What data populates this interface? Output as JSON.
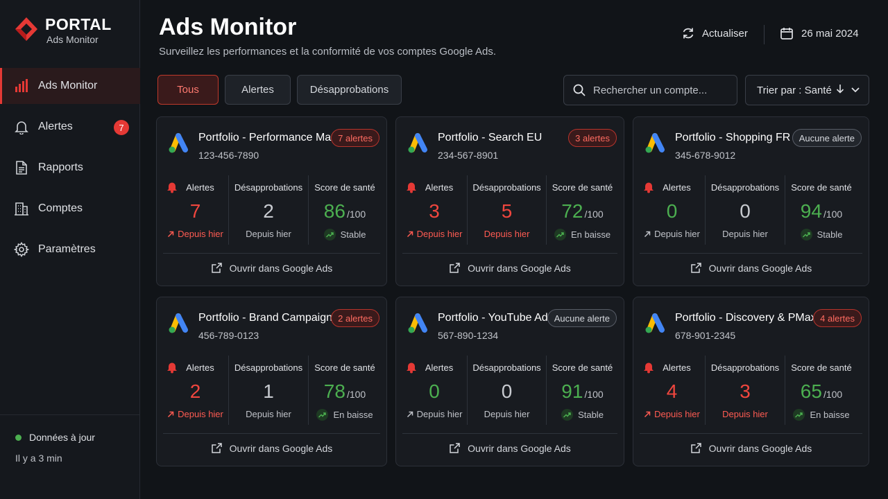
{
  "brand": {
    "name": "PORTAL",
    "sub": "Ads Monitor",
    "accent": "#e53935"
  },
  "sidebar": {
    "items": [
      {
        "label": "Ads Monitor",
        "icon": "bar-chart-icon",
        "active": true
      },
      {
        "label": "Alertes",
        "icon": "bell-icon",
        "badge": "7"
      },
      {
        "label": "Rapports",
        "icon": "document-icon"
      },
      {
        "label": "Comptes",
        "icon": "building-icon"
      },
      {
        "label": "Paramètres",
        "icon": "gear-icon"
      }
    ],
    "status": "Données à jour",
    "status_time": "Il y a 3 min"
  },
  "header": {
    "title": "Ads Monitor",
    "subtitle": "Surveillez les performances et la conformité de vos comptes Google Ads.",
    "refresh": "Actualiser",
    "date": "26 mai 2024"
  },
  "filters": [
    "Tous",
    "Alertes",
    "Désapprobations"
  ],
  "search": {
    "placeholder": "Rechercher un compte..."
  },
  "sort": {
    "label": "Trier par : Santé"
  },
  "labels": {
    "alertes": "Alertes",
    "desapprobations": "Désapprobations",
    "score": "Score de santé",
    "depuis": "Depuis hier",
    "unit": "/100",
    "open": "Ouvrir dans Google Ads"
  },
  "cards": [
    {
      "name": "Portfolio - Performance Max",
      "id": "123-456-7890",
      "pill": "7 alertes",
      "alerts": "7",
      "disapprovals": "2",
      "score": "86",
      "trend": "Stable"
    },
    {
      "name": "Portfolio - Search EU",
      "id": "234-567-8901",
      "pill": "3 alertes",
      "alerts": "3",
      "disapprovals": "5",
      "score": "72",
      "trend": "En baisse"
    },
    {
      "name": "Portfolio - Shopping FR",
      "id": "345-678-9012",
      "pill": "Aucune alerte",
      "alerts": "0",
      "disapprovals": "0",
      "score": "94",
      "trend": "Stable"
    },
    {
      "name": "Portfolio - Brand Campaign",
      "id": "456-789-0123",
      "pill": "2 alertes",
      "alerts": "2",
      "disapprovals": "1",
      "score": "78",
      "trend": "En baisse"
    },
    {
      "name": "Portfolio - YouTube Ads",
      "id": "567-890-1234",
      "pill": "Aucune alerte",
      "alerts": "0",
      "disapprovals": "0",
      "score": "91",
      "trend": "Stable"
    },
    {
      "name": "Portfolio - Discovery & PMax",
      "id": "678-901-2345",
      "pill": "4 alertes",
      "alerts": "4",
      "disapprovals": "3",
      "score": "65",
      "trend": "En baisse"
    }
  ]
}
